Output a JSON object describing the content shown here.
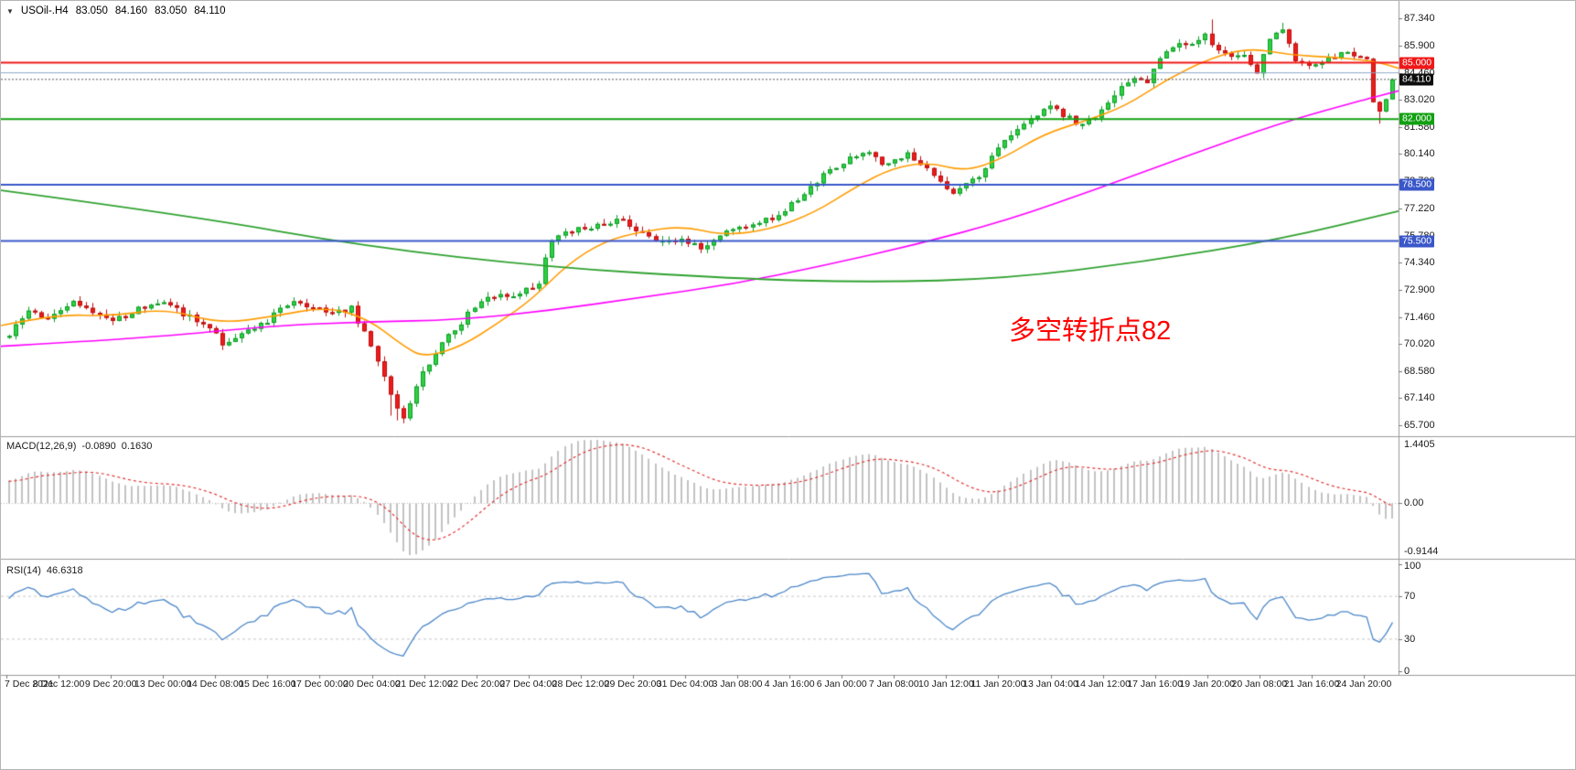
{
  "header": {
    "dropdown_icon": "▼",
    "symbol": "USOil-.H4",
    "open": "83.050",
    "high": "84.160",
    "low": "83.050",
    "close": "84.110"
  },
  "main": {
    "annotation": {
      "text": "多空转折点82",
      "color": "#ff0000"
    },
    "levels": [
      {
        "value": 85.0,
        "label": "85.000",
        "color": "#f01818",
        "width": 2,
        "badge": true
      },
      {
        "value": 84.46,
        "label": "",
        "color": "#8ca6c6",
        "width": 1,
        "badge": false
      },
      {
        "value": 82.0,
        "label": "82.000",
        "color": "#12a012",
        "width": 2,
        "badge": true
      },
      {
        "value": 78.5,
        "label": "78.500",
        "color": "#3a57c9",
        "width": 2,
        "badge": true
      },
      {
        "value": 75.5,
        "label": "75.500",
        "color": "#3a57c9",
        "width": 2,
        "badge": true
      }
    ],
    "current_price": {
      "value": 84.11,
      "label": "84.110",
      "badge_bg": "#0d0d0d",
      "line_color": "#555555"
    }
  },
  "chart_data": {
    "type": "candlestick",
    "instrument": "USOil",
    "timeframe": "H4",
    "price_axis": {
      "range": [
        65.4,
        87.9
      ],
      "labels": [
        "87.340",
        "85.900",
        "84.460",
        "83.020",
        "81.580",
        "80.140",
        "78.700",
        "77.220",
        "75.780",
        "74.340",
        "72.900",
        "71.460",
        "70.020",
        "68.580",
        "67.140",
        "65.700"
      ]
    },
    "time_axis": {
      "labels": [
        "7 Dec 2021",
        "8 Dec 12:00",
        "9 Dec 20:00",
        "13 Dec 00:00",
        "14 Dec 08:00",
        "15 Dec 16:00",
        "17 Dec 00:00",
        "20 Dec 04:00",
        "21 Dec 12:00",
        "22 Dec 20:00",
        "27 Dec 04:00",
        "28 Dec 12:00",
        "29 Dec 20:00",
        "31 Dec 04:00",
        "3 Jan 08:00",
        "4 Jan 16:00",
        "6 Jan 00:00",
        "7 Jan 08:00",
        "10 Jan 12:00",
        "11 Jan 20:00",
        "13 Jan 04:00",
        "14 Jan 12:00",
        "17 Jan 16:00",
        "19 Jan 20:00",
        "20 Jan 08:00",
        "21 Jan 16:00",
        "24 Jan 20:00"
      ]
    },
    "candles": {
      "count": 215,
      "up_fill": "#2fd142",
      "up_stroke": "#0d9c28",
      "down_fill": "#ee1c1c",
      "down_stroke": "#bb0f0f",
      "close_anchors": [
        [
          0,
          70.6
        ],
        [
          3,
          71.8
        ],
        [
          6,
          71.3
        ],
        [
          10,
          72.2
        ],
        [
          13,
          71.6
        ],
        [
          16,
          71.2
        ],
        [
          20,
          71.9
        ],
        [
          24,
          72.3
        ],
        [
          27,
          71.6
        ],
        [
          30,
          71.1
        ],
        [
          33,
          70.1
        ],
        [
          36,
          70.6
        ],
        [
          40,
          71.3
        ],
        [
          44,
          72.3
        ],
        [
          47,
          72.0
        ],
        [
          50,
          71.7
        ],
        [
          53,
          71.9
        ],
        [
          56,
          70.0
        ],
        [
          58,
          68.3
        ],
        [
          60,
          66.5
        ],
        [
          61,
          66.2
        ],
        [
          63,
          67.8
        ],
        [
          66,
          69.6
        ],
        [
          68,
          70.4
        ],
        [
          70,
          71.2
        ],
        [
          73,
          72.4
        ],
        [
          76,
          72.8
        ],
        [
          78,
          72.5
        ],
        [
          80,
          72.9
        ],
        [
          82,
          73.3
        ],
        [
          84,
          75.7
        ],
        [
          87,
          76.1
        ],
        [
          90,
          76.3
        ],
        [
          95,
          76.7
        ],
        [
          98,
          75.9
        ],
        [
          101,
          75.5
        ],
        [
          104,
          75.6
        ],
        [
          107,
          75.2
        ],
        [
          110,
          75.8
        ],
        [
          113,
          76.2
        ],
        [
          117,
          76.6
        ],
        [
          120,
          77.1
        ],
        [
          124,
          78.3
        ],
        [
          127,
          79.3
        ],
        [
          130,
          79.9
        ],
        [
          133,
          80.2
        ],
        [
          135,
          79.5
        ],
        [
          137,
          79.8
        ],
        [
          139,
          80.3
        ],
        [
          141,
          79.6
        ],
        [
          144,
          78.8
        ],
        [
          146,
          78.0
        ],
        [
          148,
          78.6
        ],
        [
          151,
          79.3
        ],
        [
          153,
          80.6
        ],
        [
          156,
          81.6
        ],
        [
          159,
          82.2
        ],
        [
          161,
          82.7
        ],
        [
          164,
          82.0
        ],
        [
          166,
          81.7
        ],
        [
          168,
          82.0
        ],
        [
          171,
          83.3
        ],
        [
          174,
          84.2
        ],
        [
          176,
          84.0
        ],
        [
          178,
          85.2
        ],
        [
          181,
          86.2
        ],
        [
          183,
          85.9
        ],
        [
          185,
          86.5
        ],
        [
          187,
          85.6
        ],
        [
          189,
          85.2
        ],
        [
          191,
          85.4
        ],
        [
          193,
          84.6
        ],
        [
          195,
          86.3
        ],
        [
          197,
          86.8
        ],
        [
          199,
          85.2
        ],
        [
          201,
          84.7
        ],
        [
          203,
          85.0
        ],
        [
          205,
          85.4
        ],
        [
          207,
          85.5
        ],
        [
          209,
          85.3
        ],
        [
          210,
          85.2
        ],
        [
          211,
          82.9
        ],
        [
          212,
          82.4
        ],
        [
          213,
          83.05
        ],
        [
          214,
          84.11
        ]
      ],
      "high_wicks": [
        [
          186,
          87.3
        ],
        [
          197,
          87.12
        ]
      ],
      "low_wicks": [
        [
          59,
          66.2
        ],
        [
          60,
          65.95
        ],
        [
          212,
          81.75
        ]
      ],
      "last_ohlc": [
        83.05,
        84.16,
        83.05,
        84.11
      ],
      "warmup": {
        "bars": 40,
        "start_price": 67.2
      }
    },
    "moving_averages": [
      {
        "name": "ma-fast-orange",
        "color": "#ff9c00",
        "width": 1.6,
        "points": [
          [
            0.0,
            71.0
          ],
          [
            0.039,
            71.6
          ],
          [
            0.079,
            71.5
          ],
          [
            0.118,
            71.9
          ],
          [
            0.157,
            71.1
          ],
          [
            0.196,
            71.5
          ],
          [
            0.232,
            72.0
          ],
          [
            0.262,
            71.4
          ],
          [
            0.288,
            69.9
          ],
          [
            0.303,
            69.3
          ],
          [
            0.33,
            69.9
          ],
          [
            0.357,
            71.2
          ],
          [
            0.38,
            72.4
          ],
          [
            0.406,
            74.3
          ],
          [
            0.432,
            75.5
          ],
          [
            0.458,
            76.0
          ],
          [
            0.488,
            76.3
          ],
          [
            0.517,
            75.8
          ],
          [
            0.55,
            76.1
          ],
          [
            0.582,
            77.0
          ],
          [
            0.612,
            78.4
          ],
          [
            0.638,
            79.4
          ],
          [
            0.664,
            79.7
          ],
          [
            0.69,
            79.2
          ],
          [
            0.717,
            79.9
          ],
          [
            0.746,
            81.2
          ],
          [
            0.776,
            81.9
          ],
          [
            0.805,
            82.7
          ],
          [
            0.834,
            84.1
          ],
          [
            0.864,
            85.2
          ],
          [
            0.893,
            85.8
          ],
          [
            0.923,
            85.4
          ],
          [
            0.952,
            85.3
          ],
          [
            0.982,
            85.1
          ],
          [
            1.0,
            84.7
          ]
        ]
      },
      {
        "name": "ma-mid-magenta",
        "color": "#ff00ff",
        "width": 1.6,
        "points": [
          [
            0.0,
            69.9
          ],
          [
            0.098,
            70.3
          ],
          [
            0.196,
            71.0
          ],
          [
            0.262,
            71.2
          ],
          [
            0.327,
            71.3
          ],
          [
            0.393,
            71.8
          ],
          [
            0.458,
            72.5
          ],
          [
            0.524,
            73.2
          ],
          [
            0.589,
            74.2
          ],
          [
            0.654,
            75.3
          ],
          [
            0.72,
            76.6
          ],
          [
            0.785,
            78.3
          ],
          [
            0.851,
            80.1
          ],
          [
            0.916,
            81.8
          ],
          [
            0.969,
            82.9
          ],
          [
            1.0,
            83.5
          ]
        ]
      },
      {
        "name": "ma-slow-green",
        "color": "#2fa12f",
        "width": 1.8,
        "points": [
          [
            0.0,
            78.2
          ],
          [
            0.131,
            76.9
          ],
          [
            0.262,
            75.2
          ],
          [
            0.393,
            74.1
          ],
          [
            0.524,
            73.5
          ],
          [
            0.622,
            73.3
          ],
          [
            0.72,
            73.5
          ],
          [
            0.818,
            74.4
          ],
          [
            0.916,
            75.6
          ],
          [
            1.0,
            77.1
          ]
        ]
      }
    ],
    "macd": {
      "label": "MACD(12,26,9)",
      "value_macd": "-0.0890",
      "value_signal": "0.1630",
      "params": [
        12,
        26,
        9
      ],
      "axis_labels": [
        "1.4405",
        "0.00",
        "-0.9144"
      ],
      "bar_color": "#c2c2c2",
      "signal_color": "#e23030"
    },
    "rsi": {
      "label": "RSI(14)",
      "value": "46.6318",
      "period": 14,
      "axis_labels": [
        "100",
        "70",
        "30",
        "0"
      ],
      "level_lines": [
        70,
        30
      ],
      "line_color": "#4a86c8"
    }
  }
}
